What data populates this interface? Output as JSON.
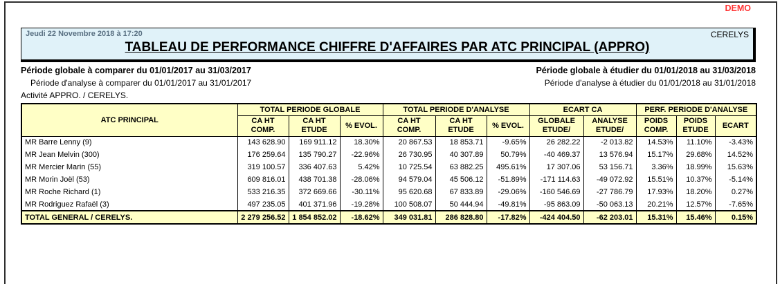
{
  "page": {
    "demo_label": "DEMO",
    "company": "CERELYS",
    "datetime": "Jeudi 22 Novembre 2018 à 17:20",
    "title": "TABLEAU DE PERFORMANCE CHIFFRE D'AFFAIRES PAR ATC PRINCIPAL (APPRO)"
  },
  "periods": {
    "global_compare": "Période globale à comparer du 01/01/2017 au 31/03/2017",
    "global_study": "Période globale à étudier du 01/01/2018 au 31/03/2018",
    "analysis_compare": "Période d'analyse à comparer du 01/01/2017 au 31/01/2017",
    "analysis_study": "Période d'analyse à étudier du 01/01/2018 au 31/01/2018",
    "activity": "Activité APPRO. / CERELYS."
  },
  "table": {
    "atc_header": "ATC PRINCIPAL",
    "groups": [
      {
        "label": "TOTAL PERIODE GLOBALE",
        "span": 3
      },
      {
        "label": "TOTAL PERIODE D'ANALYSE",
        "span": 3
      },
      {
        "label": "ECART CA",
        "span": 2
      },
      {
        "label": "PERF. PERIODE D'ANALYSE",
        "span": 3
      }
    ],
    "subheaders": [
      "CA HT\nCOMP.",
      "CA HT\nETUDE",
      "% EVOL.",
      "CA HT\nCOMP.",
      "CA HT\nETUDE",
      "% EVOL.",
      "GLOBALE\nETUDE/",
      "ANALYSE\nETUDE/",
      "POIDS\nCOMP.",
      "POIDS\nETUDE",
      "ECART"
    ],
    "rows": [
      {
        "name": "MR Barre Lenny (9)",
        "values": [
          "143 628.90",
          "169 911.12",
          "18.30%",
          "20 867.53",
          "18 853.71",
          "-9.65%",
          "26 282.22",
          "-2 013.82",
          "14.53%",
          "11.10%",
          "-3.43%"
        ]
      },
      {
        "name": "MR Jean Melvin (300)",
        "values": [
          "176 259.64",
          "135 790.27",
          "-22.96%",
          "26 730.95",
          "40 307.89",
          "50.79%",
          "-40 469.37",
          "13 576.94",
          "15.17%",
          "29.68%",
          "14.52%"
        ]
      },
      {
        "name": "MR Mercier Marin (55)",
        "values": [
          "319 100.57",
          "336 407.63",
          "5.42%",
          "10 725.54",
          "63 882.25",
          "495.61%",
          "17 307.06",
          "53 156.71",
          "3.36%",
          "18.99%",
          "15.63%"
        ]
      },
      {
        "name": "MR Morin Joël (53)",
        "values": [
          "609 816.01",
          "438 701.38",
          "-28.06%",
          "94 579.04",
          "45 506.12",
          "-51.89%",
          "-171 114.63",
          "-49 072.92",
          "15.51%",
          "10.37%",
          "-5.14%"
        ]
      },
      {
        "name": "MR Roche Richard (1)",
        "values": [
          "533 216.35",
          "372 669.66",
          "-30.11%",
          "95 620.68",
          "67 833.89",
          "-29.06%",
          "-160 546.69",
          "-27 786.79",
          "17.93%",
          "18.20%",
          "0.27%"
        ]
      },
      {
        "name": "MR Rodriguez Rafaël (3)",
        "values": [
          "497 235.05",
          "401 371.96",
          "-19.28%",
          "100 508.07",
          "50 444.94",
          "-49.81%",
          "-95 863.09",
          "-50 063.13",
          "20.21%",
          "12.57%",
          "-7.65%"
        ]
      }
    ],
    "total": {
      "name": "TOTAL GENERAL / CERELYS.",
      "values": [
        "2 279 256.52",
        "1 854 852.02",
        "-18.62%",
        "349 031.81",
        "286 828.80",
        "-17.82%",
        "-424 404.50",
        "-62 203.01",
        "15.31%",
        "15.46%",
        "0.15%"
      ]
    }
  }
}
